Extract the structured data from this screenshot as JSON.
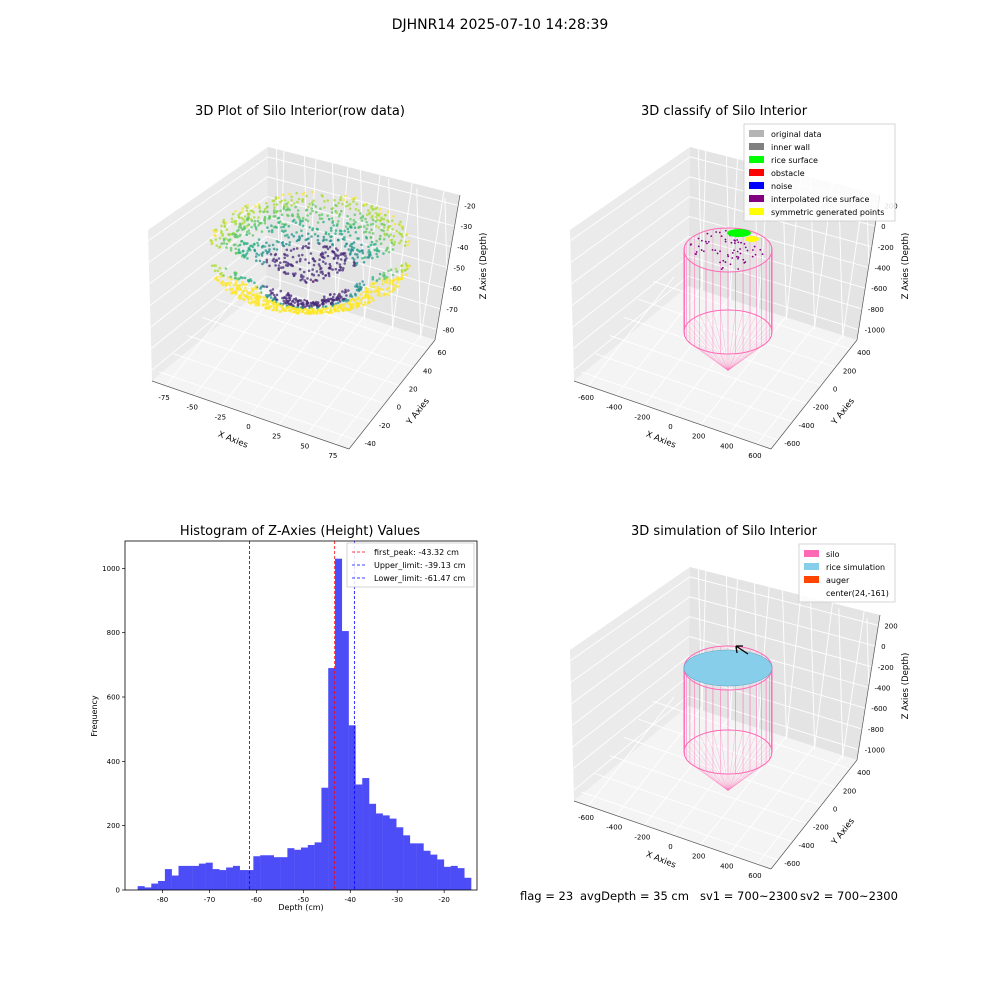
{
  "suptitle": "DJHNR14 2025-07-10 14:28:39",
  "colors": {
    "pane_left": "#ebebeb",
    "pane_right": "#e4e4e4",
    "pane_floor": "#f4f4f4",
    "grid": "#ffffff",
    "hist_bar": "#4d4df7",
    "first_peak_line": "#ff0000",
    "limit_lines": "#0000ff",
    "silo_pink": "#ff69b4",
    "rice_blue": "#87ceeb",
    "auger_orange": "#ff4500"
  },
  "panels": {
    "raw": {
      "title": "3D Plot of Silo Interior(row data)",
      "xlabel": "X Axies",
      "ylabel": "Y Axies",
      "zlabel": "Z Axies (Depth)",
      "xticks": [
        "-75",
        "-50",
        "-25",
        "0",
        "25",
        "50",
        "75"
      ],
      "yticks": [
        "-40",
        "-20",
        "0",
        "20",
        "40",
        "60"
      ],
      "zticks": [
        "-20",
        "-30",
        "-40",
        "-50",
        "-60",
        "-70",
        "-80"
      ],
      "colormap": "viridis"
    },
    "classify": {
      "title": "3D classify of Silo Interior",
      "xlabel": "X Axies",
      "ylabel": "Y Axies",
      "zlabel": "Z Axies (Depth)",
      "xticks": [
        "-600",
        "-400",
        "-200",
        "0",
        "200",
        "400",
        "600"
      ],
      "yticks": [
        "-600",
        "-400",
        "-200",
        "0",
        "200",
        "400"
      ],
      "zticks": [
        "200",
        "0",
        "-200",
        "-400",
        "-600",
        "-800",
        "-1000"
      ],
      "legend": [
        {
          "label": "original data",
          "color": "#b4b4b4"
        },
        {
          "label": "inner wall",
          "color": "#808080"
        },
        {
          "label": "rice surface",
          "color": "#00ff00"
        },
        {
          "label": "obstacle",
          "color": "#ff0000"
        },
        {
          "label": "noise",
          "color": "#0000ff"
        },
        {
          "label": "interpolated rice surface",
          "color": "#800080"
        },
        {
          "label": "symmetric generated points",
          "color": "#ffff00"
        }
      ]
    },
    "simulation": {
      "title": "3D simulation of Silo Interior",
      "xlabel": "X Axies",
      "ylabel": "Y Axies",
      "zlabel": "Z Axies (Depth)",
      "xticks": [
        "-600",
        "-400",
        "-200",
        "0",
        "200",
        "400",
        "600"
      ],
      "yticks": [
        "-600",
        "-400",
        "-200",
        "0",
        "200",
        "400"
      ],
      "zticks": [
        "200",
        "0",
        "-200",
        "-400",
        "-600",
        "-800",
        "-1000"
      ],
      "legend": [
        {
          "label": "silo",
          "color": "#ff69b4"
        },
        {
          "label": "rice simulation",
          "color": "#87ceeb"
        },
        {
          "label": "auger",
          "color": "#ff4500"
        },
        {
          "label": "center(24,-161)",
          "color": ""
        }
      ]
    }
  },
  "chart_data": {
    "type": "bar",
    "title": "Histogram of Z-Axies (Height) Values",
    "xlabel": "Depth (cm)",
    "ylabel": "Frequency",
    "xlim": [
      -88,
      -13
    ],
    "ylim": [
      0,
      1085
    ],
    "xticks": [
      -80,
      -70,
      -60,
      -50,
      -40,
      -30,
      -20
    ],
    "yticks": [
      0,
      200,
      400,
      600,
      800,
      1000
    ],
    "bin_width": 1.45,
    "bins_start": -85.3,
    "values": [
      12,
      8,
      20,
      28,
      65,
      45,
      75,
      75,
      75,
      82,
      85,
      65,
      62,
      70,
      75,
      62,
      62,
      105,
      108,
      108,
      102,
      102,
      130,
      125,
      132,
      140,
      148,
      318,
      690,
      1030,
      805,
      512,
      328,
      348,
      268,
      238,
      232,
      222,
      195,
      170,
      145,
      145,
      122,
      110,
      95,
      72,
      75,
      68,
      38
    ],
    "vlines": [
      {
        "label": "first_peak: -43.32 cm",
        "x": -43.32,
        "color": "#ff0000"
      },
      {
        "label": "Upper_limit: -39.13 cm",
        "x": -39.13,
        "color": "#0000ff"
      },
      {
        "label": "Lower_limit: -61.47 cm",
        "x": -61.47,
        "color": "#0000ff"
      }
    ]
  },
  "footer": {
    "flag": "flag = 23",
    "avg_depth": "avgDepth = 35 cm",
    "sv1": "sv1 = 700~2300",
    "sv2": "sv2 = 700~2300"
  }
}
